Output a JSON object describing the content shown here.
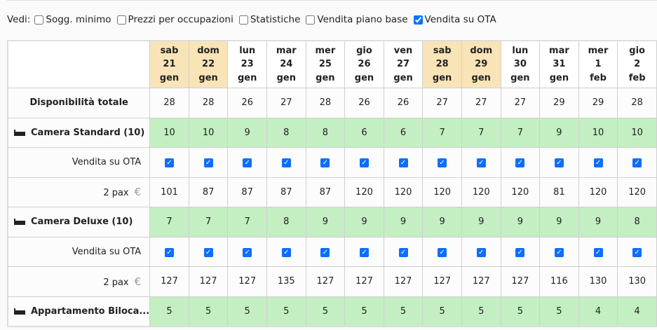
{
  "filters": {
    "label": "Vedi:",
    "options": [
      {
        "label": "Sogg. minimo",
        "checked": false
      },
      {
        "label": "Prezzi per occupazioni",
        "checked": false
      },
      {
        "label": "Statistiche",
        "checked": false
      },
      {
        "label": "Vendita piano base",
        "checked": false
      },
      {
        "label": "Vendita su OTA",
        "checked": true
      }
    ]
  },
  "dates": [
    {
      "day": "sab",
      "num": "21",
      "month": "gen",
      "weekend": true
    },
    {
      "day": "dom",
      "num": "22",
      "month": "gen",
      "weekend": true
    },
    {
      "day": "lun",
      "num": "23",
      "month": "gen"
    },
    {
      "day": "mar",
      "num": "24",
      "month": "gen"
    },
    {
      "day": "mer",
      "num": "25",
      "month": "gen"
    },
    {
      "day": "gio",
      "num": "26",
      "month": "gen"
    },
    {
      "day": "ven",
      "num": "27",
      "month": "gen"
    },
    {
      "day": "sab",
      "num": "28",
      "month": "gen",
      "weekend": true
    },
    {
      "day": "dom",
      "num": "29",
      "month": "gen",
      "weekend": true
    },
    {
      "day": "lun",
      "num": "30",
      "month": "gen"
    },
    {
      "day": "mar",
      "num": "31",
      "month": "gen"
    },
    {
      "day": "mer",
      "num": "1",
      "month": "feb"
    },
    {
      "day": "gio",
      "num": "2",
      "month": "feb"
    }
  ],
  "total": {
    "label": "Disponibilità totale",
    "values": [
      "28",
      "28",
      "26",
      "27",
      "28",
      "26",
      "26",
      "27",
      "27",
      "27",
      "29",
      "29",
      "28"
    ]
  },
  "rooms": [
    {
      "name": "Camera Standard (10)",
      "availability": [
        "10",
        "10",
        "9",
        "8",
        "8",
        "6",
        "6",
        "7",
        "7",
        "7",
        "9",
        "10",
        "10"
      ],
      "ota_label": "Vendita su OTA",
      "ota": [
        true,
        true,
        true,
        true,
        true,
        true,
        true,
        true,
        true,
        true,
        true,
        true,
        true
      ],
      "price_label": "2 pax",
      "currency": "€",
      "prices": [
        "101",
        "87",
        "87",
        "87",
        "87",
        "120",
        "120",
        "120",
        "120",
        "120",
        "81",
        "120",
        "120"
      ]
    },
    {
      "name": "Camera Deluxe (10)",
      "availability": [
        "7",
        "7",
        "7",
        "8",
        "9",
        "9",
        "9",
        "9",
        "9",
        "9",
        "9",
        "9",
        "8"
      ],
      "ota_label": "Vendita su OTA",
      "ota": [
        true,
        true,
        true,
        true,
        true,
        true,
        true,
        true,
        true,
        true,
        true,
        true,
        true
      ],
      "price_label": "2 pax",
      "currency": "€",
      "prices": [
        "127",
        "127",
        "127",
        "135",
        "127",
        "127",
        "127",
        "127",
        "127",
        "127",
        "116",
        "130",
        "130"
      ]
    },
    {
      "name": "Appartamento Biloca...",
      "availability": [
        "5",
        "5",
        "5",
        "5",
        "5",
        "5",
        "5",
        "5",
        "5",
        "5",
        "5",
        "4",
        "4"
      ]
    }
  ]
}
